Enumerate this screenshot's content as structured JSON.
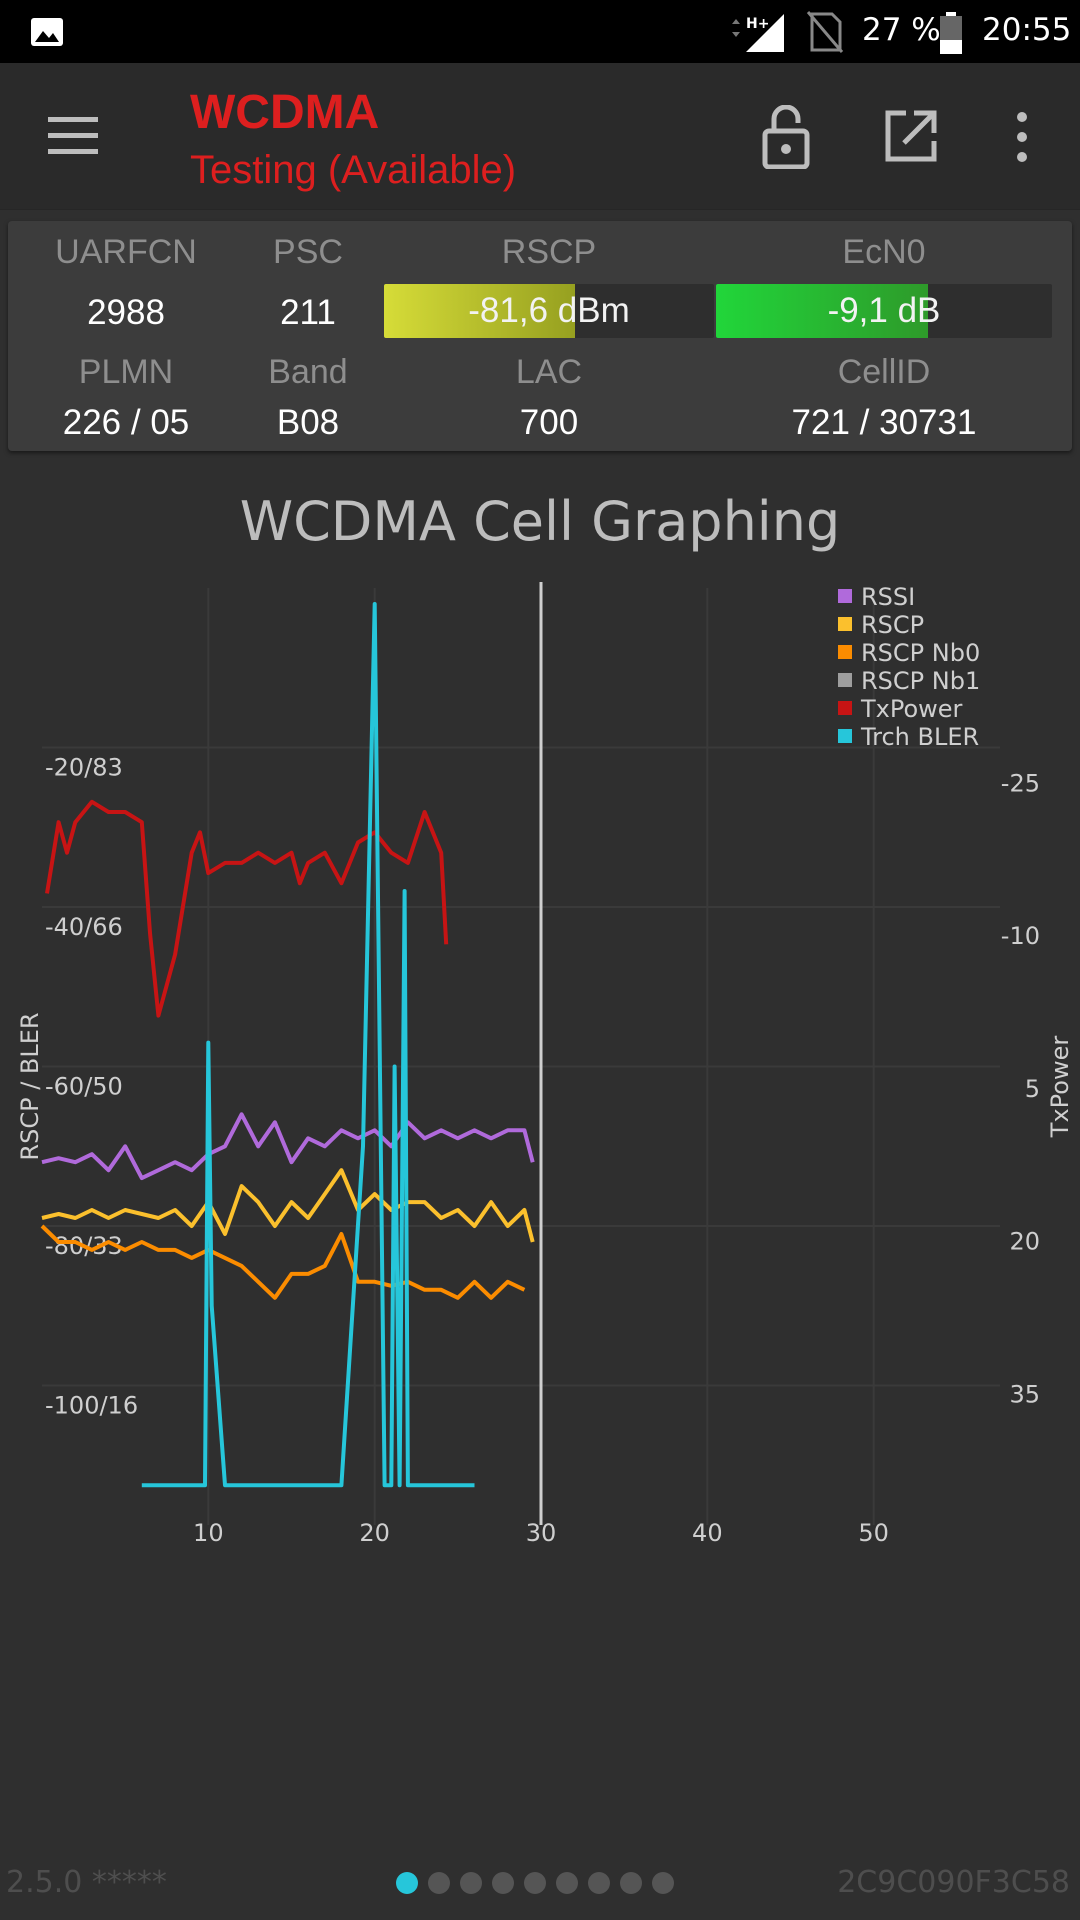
{
  "status_bar": {
    "network_type": "H+",
    "battery_percent": "27 %",
    "time": "20:55"
  },
  "app_bar": {
    "title": "WCDMA",
    "subtitle": "Testing (Available)",
    "title_color": "#dd1f1f"
  },
  "cell_info": {
    "uarfcn_label": "UARFCN",
    "uarfcn": "2988",
    "psc_label": "PSC",
    "psc": "211",
    "rscp_label": "RSCP",
    "rscp": "-81,6 dBm",
    "rscp_fill": 0.58,
    "ecn0_label": "EcN0",
    "ecn0": "-9,1 dB",
    "ecn0_fill": 0.63,
    "plmn_label": "PLMN",
    "plmn": "226 / 05",
    "band_label": "Band",
    "band": "B08",
    "lac_label": "LAC",
    "lac": "700",
    "cellid_label": "CellID",
    "cellid": "721 / 30731"
  },
  "chart_data": {
    "type": "line",
    "title": "WCDMA Cell Graphing",
    "ylabel": "RSCP / BLER",
    "y2label": "TxPower",
    "xlim": [
      0,
      60
    ],
    "ylim": [
      -120,
      0
    ],
    "y2lim": [
      -44,
      50
    ],
    "x_ticks": [
      "10",
      "20",
      "30",
      "40",
      "50"
    ],
    "y_ticks": [
      "-20/83",
      "-40/66",
      "-60/50",
      "-80/33",
      "-100/16"
    ],
    "y2_ticks": [
      "-25",
      "-10",
      "5",
      "20",
      "35"
    ],
    "cursor_x": 30,
    "legend_position": "top-right",
    "series": [
      {
        "name": "RSSI",
        "color": "#b06adb",
        "axis": "left",
        "x": [
          0,
          1,
          2,
          3,
          4,
          5,
          6,
          7,
          8,
          9,
          10,
          11,
          12,
          13,
          14,
          15,
          16,
          17,
          18,
          19,
          20,
          21,
          22,
          23,
          24,
          25,
          26,
          27,
          28,
          29,
          29.5
        ],
        "y": [
          -72,
          -71.5,
          -72,
          -71,
          -73,
          -70,
          -74,
          -73,
          -72,
          -73,
          -71,
          -70,
          -66,
          -70,
          -67,
          -72,
          -69,
          -70,
          -68,
          -69,
          -68,
          -70,
          -67,
          -69,
          -68,
          -69,
          -68,
          -69,
          -68,
          -68,
          -72
        ]
      },
      {
        "name": "RSCP",
        "color": "#fbc02d",
        "axis": "left",
        "x": [
          0,
          1,
          2,
          3,
          4,
          5,
          6,
          7,
          8,
          9,
          10,
          11,
          12,
          13,
          14,
          15,
          16,
          17,
          18,
          19,
          20,
          21,
          22,
          23,
          24,
          25,
          26,
          27,
          28,
          29,
          29.5
        ],
        "y": [
          -79,
          -78.5,
          -79,
          -78,
          -79,
          -78,
          -78.5,
          -79,
          -78,
          -80,
          -77,
          -81,
          -75,
          -77,
          -80,
          -77,
          -79,
          -76,
          -73,
          -78,
          -76,
          -78,
          -77,
          -77,
          -79,
          -78,
          -80,
          -77,
          -80,
          -78,
          -82
        ]
      },
      {
        "name": "RSCP Nb0",
        "color": "#fb8c00",
        "axis": "left",
        "x": [
          0,
          1,
          2,
          3,
          4,
          5,
          6,
          7,
          8,
          9,
          10,
          11,
          12,
          13,
          14,
          15,
          16,
          17,
          18,
          19,
          20,
          21,
          22,
          23,
          24,
          25,
          26,
          27,
          28,
          29
        ],
        "y": [
          -80,
          -82,
          -82,
          -83,
          -82,
          -83,
          -82,
          -83,
          -83,
          -84,
          -83,
          -84,
          -85,
          -87,
          -89,
          -86,
          -86,
          -85,
          -81,
          -87,
          -87,
          -87.5,
          -87,
          -88,
          -88,
          -89,
          -87,
          -89,
          -87,
          -88
        ]
      },
      {
        "name": "RSCP Nb1",
        "color": "#9e9e9e",
        "axis": "left",
        "x": [],
        "y": []
      },
      {
        "name": "TxPower",
        "color": "#c71414",
        "axis": "right",
        "x": [
          0.3,
          1,
          1.5,
          2,
          3,
          4,
          5,
          6,
          6.5,
          7,
          8,
          9,
          9.5,
          10,
          11,
          12,
          13,
          14,
          15,
          15.5,
          16,
          17,
          18,
          19,
          20,
          21,
          22,
          23,
          24,
          24.3
        ],
        "y": [
          -14,
          -21,
          -18,
          -21,
          -23,
          -22,
          -22,
          -21,
          -10,
          -2,
          -8,
          -18,
          -20,
          -16,
          -17,
          -17,
          -18,
          -17,
          -18,
          -15,
          -17,
          -18,
          -15,
          -19,
          -20,
          -18,
          -17,
          -22,
          -18,
          -9
        ]
      },
      {
        "name": "Trch BLER",
        "color": "#26c6da",
        "axis": "left",
        "x": [
          6,
          9.8,
          10,
          10.2,
          11,
          13.5,
          16.5,
          18,
          19.3,
          20,
          20.6,
          21,
          21.2,
          21.5,
          21.8,
          22,
          22.3,
          22.6,
          23,
          26
        ],
        "y": [
          -112.5,
          -112.5,
          -57,
          -90,
          -112.5,
          -112.5,
          -112.5,
          -112.5,
          -70,
          -2,
          -112.5,
          -112.5,
          -60,
          -112.5,
          -38,
          -112.5,
          -112.5,
          -112.5,
          -112.5,
          -112.5
        ]
      }
    ]
  },
  "footer": {
    "version": "2.5.0 *****",
    "device_id": "2C9C090F3C58",
    "page_count": 9,
    "active_page": 0,
    "active_color": "#26c6da"
  }
}
